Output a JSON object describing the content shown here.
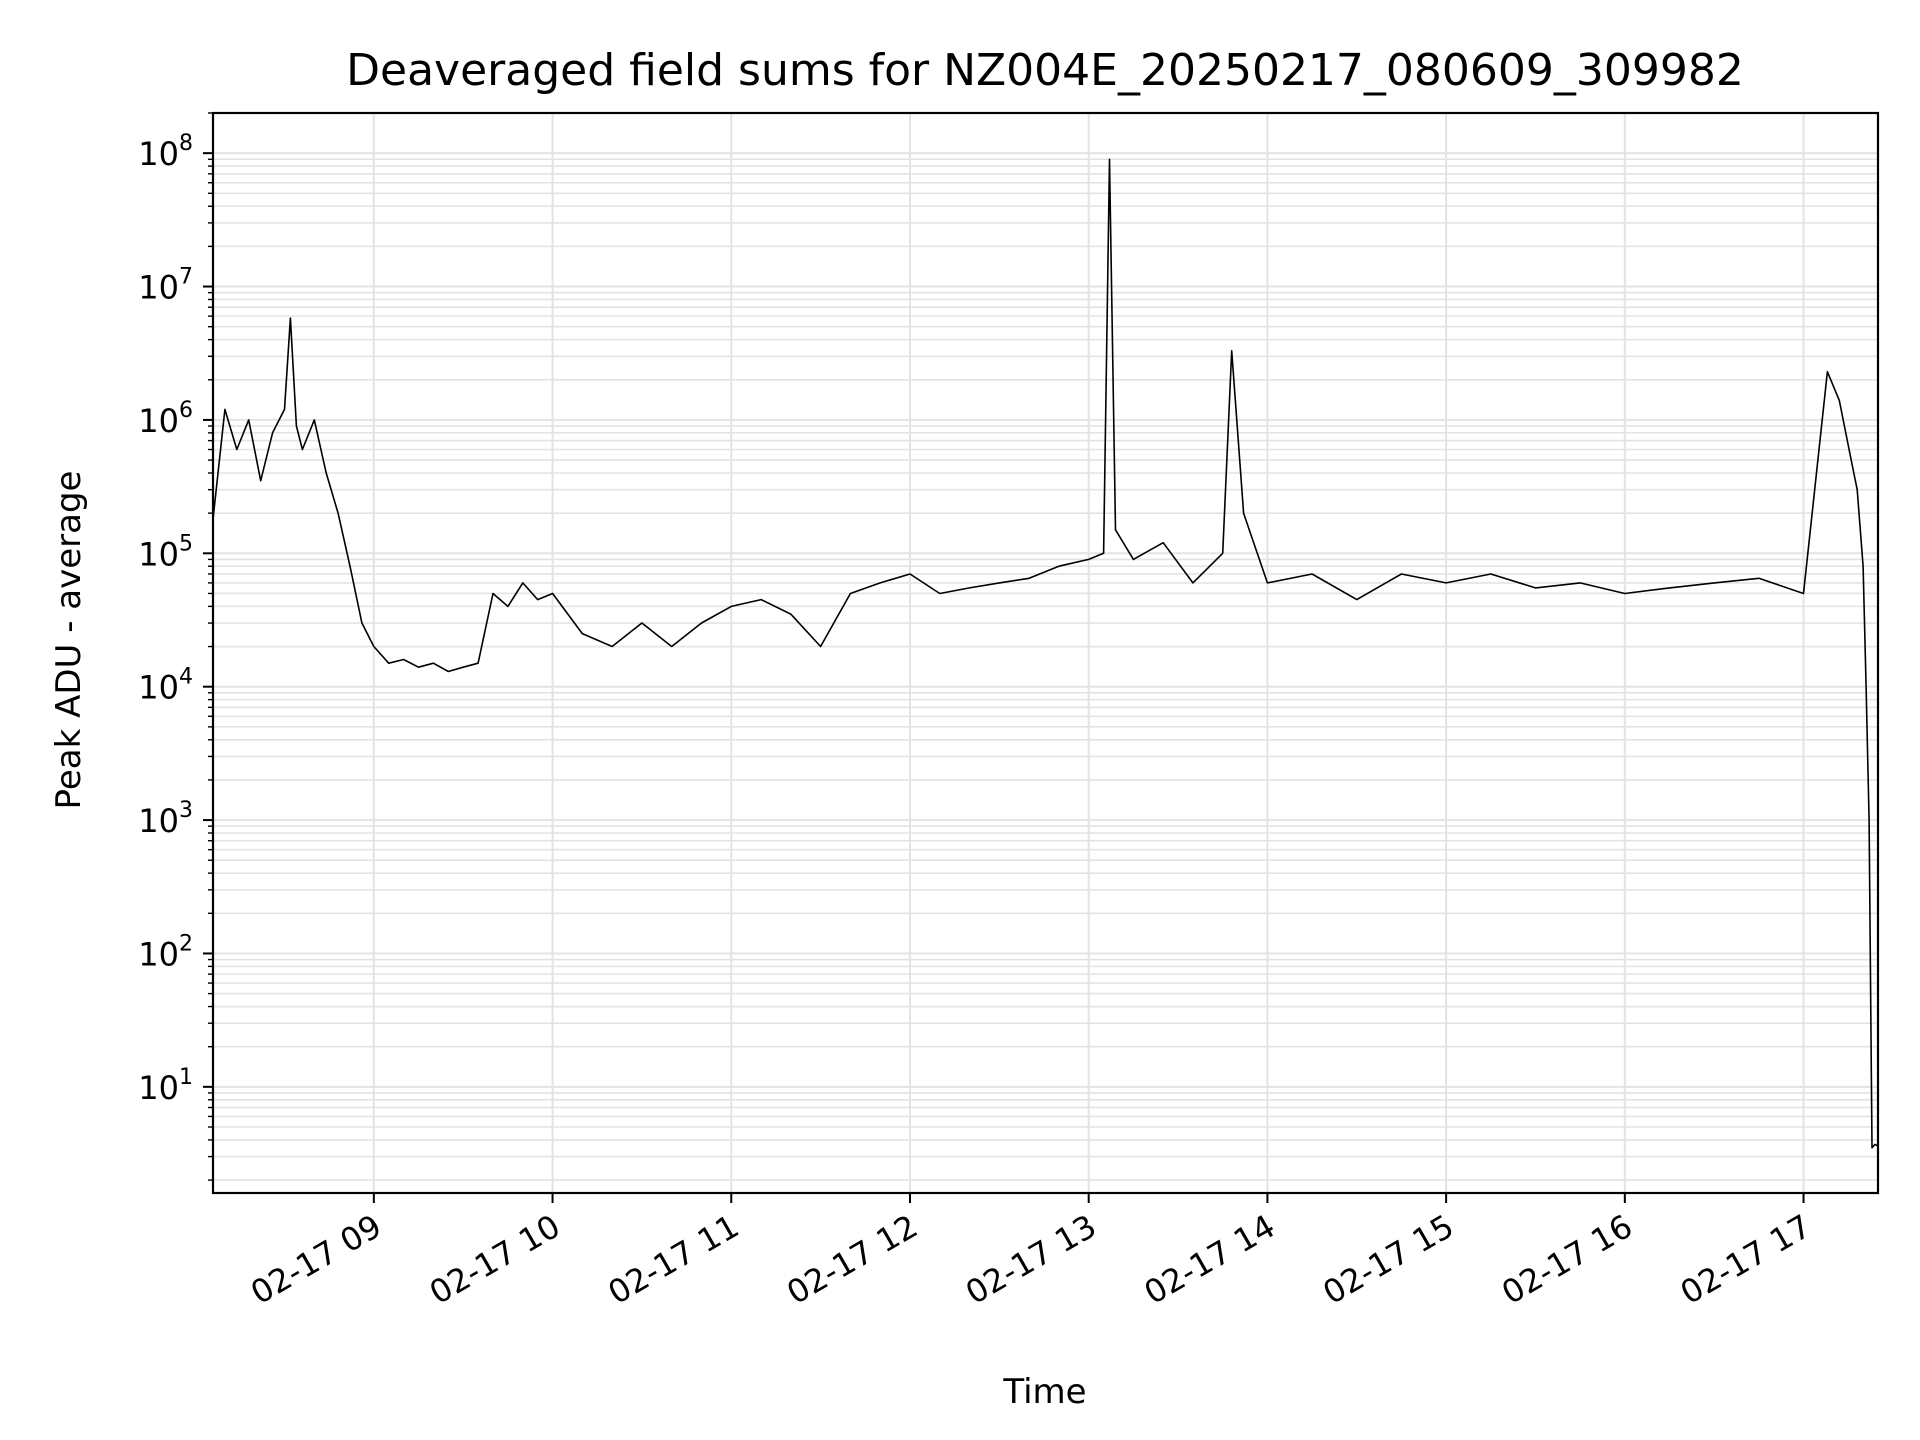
{
  "chart_data": {
    "type": "line",
    "title": "Deaveraged field sums for NZ004E_20250217_080609_309982",
    "xlabel": "Time",
    "ylabel": "Peak ADU - average",
    "yscale": "log",
    "xlim": [
      "2025-02-17T08:06",
      "2025-02-17T17:25"
    ],
    "ylim": [
      1.6,
      200000000
    ],
    "grid": true,
    "series_color": "#000000",
    "x_ticks": [
      {
        "value": "2025-02-17T09:00",
        "label": "02-17 09"
      },
      {
        "value": "2025-02-17T10:00",
        "label": "02-17 10"
      },
      {
        "value": "2025-02-17T11:00",
        "label": "02-17 11"
      },
      {
        "value": "2025-02-17T12:00",
        "label": "02-17 12"
      },
      {
        "value": "2025-02-17T13:00",
        "label": "02-17 13"
      },
      {
        "value": "2025-02-17T14:00",
        "label": "02-17 14"
      },
      {
        "value": "2025-02-17T15:00",
        "label": "02-17 15"
      },
      {
        "value": "2025-02-17T16:00",
        "label": "02-17 16"
      },
      {
        "value": "2025-02-17T17:00",
        "label": "02-17 17"
      }
    ],
    "y_ticks": [
      {
        "value": 10,
        "base": "10",
        "exp": "1"
      },
      {
        "value": 100,
        "base": "10",
        "exp": "2"
      },
      {
        "value": 1000,
        "base": "10",
        "exp": "3"
      },
      {
        "value": 10000,
        "base": "10",
        "exp": "4"
      },
      {
        "value": 100000,
        "base": "10",
        "exp": "5"
      },
      {
        "value": 1000000,
        "base": "10",
        "exp": "6"
      },
      {
        "value": 10000000,
        "base": "10",
        "exp": "7"
      },
      {
        "value": 100000000,
        "base": "10",
        "exp": "8"
      }
    ],
    "series": [
      {
        "x": [
          "2025-02-17T08:06",
          "2025-02-17T08:10",
          "2025-02-17T08:14",
          "2025-02-17T08:18",
          "2025-02-17T08:22",
          "2025-02-17T08:26",
          "2025-02-17T08:30",
          "2025-02-17T08:32",
          "2025-02-17T08:34",
          "2025-02-17T08:36",
          "2025-02-17T08:40",
          "2025-02-17T08:44",
          "2025-02-17T08:48",
          "2025-02-17T08:52",
          "2025-02-17T08:56",
          "2025-02-17T09:00",
          "2025-02-17T09:05",
          "2025-02-17T09:10",
          "2025-02-17T09:15",
          "2025-02-17T09:20",
          "2025-02-17T09:25",
          "2025-02-17T09:30",
          "2025-02-17T09:35",
          "2025-02-17T09:40",
          "2025-02-17T09:45",
          "2025-02-17T09:50",
          "2025-02-17T09:55",
          "2025-02-17T10:00",
          "2025-02-17T10:10",
          "2025-02-17T10:20",
          "2025-02-17T10:30",
          "2025-02-17T10:40",
          "2025-02-17T10:50",
          "2025-02-17T11:00",
          "2025-02-17T11:10",
          "2025-02-17T11:20",
          "2025-02-17T11:30",
          "2025-02-17T11:40",
          "2025-02-17T11:50",
          "2025-02-17T12:00",
          "2025-02-17T12:10",
          "2025-02-17T12:20",
          "2025-02-17T12:30",
          "2025-02-17T12:40",
          "2025-02-17T12:50",
          "2025-02-17T13:00",
          "2025-02-17T13:05",
          "2025-02-17T13:07",
          "2025-02-17T13:09",
          "2025-02-17T13:15",
          "2025-02-17T13:25",
          "2025-02-17T13:35",
          "2025-02-17T13:45",
          "2025-02-17T13:48",
          "2025-02-17T13:52",
          "2025-02-17T14:00",
          "2025-02-17T14:15",
          "2025-02-17T14:30",
          "2025-02-17T14:45",
          "2025-02-17T15:00",
          "2025-02-17T15:15",
          "2025-02-17T15:30",
          "2025-02-17T15:45",
          "2025-02-17T16:00",
          "2025-02-17T16:15",
          "2025-02-17T16:30",
          "2025-02-17T16:45",
          "2025-02-17T17:00",
          "2025-02-17T17:08",
          "2025-02-17T17:12",
          "2025-02-17T17:16",
          "2025-02-17T17:18",
          "2025-02-17T17:20",
          "2025-02-17T17:21",
          "2025-02-17T17:22",
          "2025-02-17T17:23",
          "2025-02-17T17:24",
          "2025-02-17T17:25"
        ],
        "y": [
          180000,
          1200000,
          600000,
          1000000,
          350000,
          800000,
          1200000,
          5800000,
          900000,
          600000,
          1000000,
          400000,
          200000,
          80000,
          30000,
          20000,
          15000,
          16000,
          14000,
          15000,
          13000,
          14000,
          15000,
          50000,
          40000,
          60000,
          45000,
          50000,
          25000,
          20000,
          30000,
          20000,
          30000,
          40000,
          45000,
          35000,
          20000,
          50000,
          60000,
          70000,
          50000,
          55000,
          60000,
          65000,
          80000,
          90000,
          100000,
          90000000,
          150000,
          90000,
          120000,
          60000,
          100000,
          3300000,
          200000,
          60000,
          70000,
          45000,
          70000,
          60000,
          70000,
          55000,
          60000,
          50000,
          55000,
          60000,
          65000,
          50000,
          2300000,
          1400000,
          500000,
          300000,
          80000,
          10000,
          1000,
          3.5,
          3.7,
          3.6
        ]
      }
    ]
  }
}
